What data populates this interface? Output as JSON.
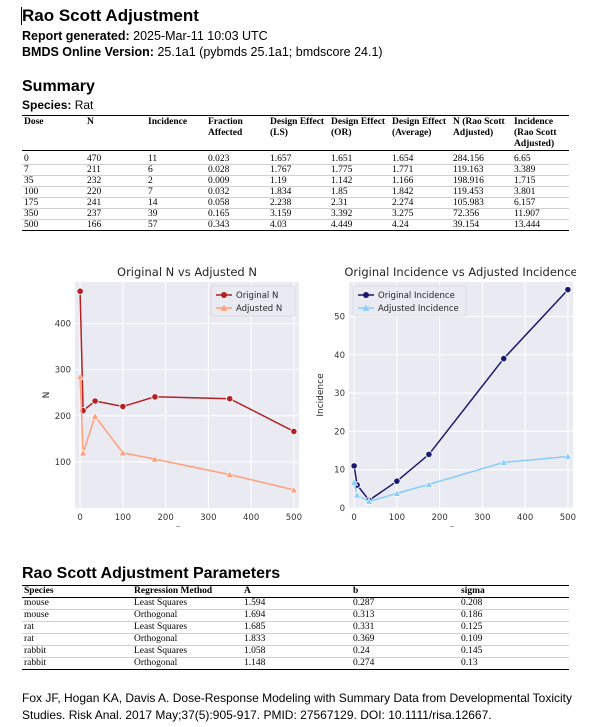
{
  "report": {
    "title": "Rao Scott Adjustment",
    "generated_label": "Report generated:",
    "generated_value": "2025-Mar-11 10:03 UTC",
    "version_label": "BMDS Online Version:",
    "version_value": "25.1a1 (pybmds 25.1a1; bmdscore 24.1)"
  },
  "summary": {
    "heading": "Summary",
    "species_label": "Species:",
    "species_value": "Rat",
    "headers": [
      "Dose",
      "N",
      "Incidence",
      "Fraction Affected",
      "Design Effect (LS)",
      "Design Effect (OR)",
      "Design Effect (Average)",
      "N (Rao Scott Adjusted)",
      "Incidence (Rao Scott Adjusted)"
    ],
    "rows": [
      [
        "0",
        "470",
        "11",
        "0.023",
        "1.657",
        "1.651",
        "1.654",
        "284.156",
        "6.65"
      ],
      [
        "7",
        "211",
        "6",
        "0.028",
        "1.767",
        "1.775",
        "1.771",
        "119.163",
        "3.389"
      ],
      [
        "35",
        "232",
        "2",
        "0.009",
        "1.19",
        "1.142",
        "1.166",
        "198.916",
        "1.715"
      ],
      [
        "100",
        "220",
        "7",
        "0.032",
        "1.834",
        "1.85",
        "1.842",
        "119.453",
        "3.801"
      ],
      [
        "175",
        "241",
        "14",
        "0.058",
        "2.238",
        "2.31",
        "2.274",
        "105.983",
        "6.157"
      ],
      [
        "350",
        "237",
        "39",
        "0.165",
        "3.159",
        "3.392",
        "3.275",
        "72.356",
        "11.907"
      ],
      [
        "500",
        "166",
        "57",
        "0.343",
        "4.03",
        "4.449",
        "4.24",
        "39.154",
        "13.444"
      ]
    ]
  },
  "chart_data": [
    {
      "type": "line",
      "title": "Original N vs Adjusted N",
      "xlabel": "Dose",
      "ylabel": "N",
      "x": [
        0,
        7,
        35,
        100,
        175,
        350,
        500
      ],
      "xlim": [
        -12,
        512
      ],
      "ylim": [
        0,
        490
      ],
      "xticks": [
        0,
        100,
        200,
        300,
        400,
        500
      ],
      "yticks": [
        100,
        200,
        300,
        400
      ],
      "legend": "top-right",
      "grid": true,
      "series": [
        {
          "name": "Original N",
          "values": [
            470,
            211,
            232,
            220,
            241,
            237,
            166
          ],
          "color": "#b22222",
          "marker": "circle"
        },
        {
          "name": "Adjusted N",
          "values": [
            284.156,
            119.163,
            198.916,
            119.453,
            105.983,
            72.356,
            39.154
          ],
          "color": "#ffa07a",
          "marker": "triangle"
        }
      ]
    },
    {
      "type": "line",
      "title": "Original Incidence vs Adjusted Incidence",
      "xlabel": "Dose",
      "ylabel": "Incidence",
      "x": [
        0,
        7,
        35,
        100,
        175,
        350,
        500
      ],
      "xlim": [
        -12,
        512
      ],
      "ylim": [
        0,
        59
      ],
      "xticks": [
        0,
        100,
        200,
        300,
        400,
        500
      ],
      "yticks": [
        0,
        10,
        20,
        30,
        40,
        50
      ],
      "legend": "top-left",
      "grid": true,
      "series": [
        {
          "name": "Original Incidence",
          "values": [
            11,
            6,
            2,
            7,
            14,
            39,
            57
          ],
          "color": "#191970",
          "marker": "circle"
        },
        {
          "name": "Adjusted Incidence",
          "values": [
            6.65,
            3.389,
            1.715,
            3.801,
            6.157,
            11.907,
            13.444
          ],
          "color": "#87cefa",
          "marker": "triangle"
        }
      ]
    }
  ],
  "params": {
    "heading": "Rao Scott Adjustment Parameters",
    "headers": [
      "Species",
      "Regression Method",
      "A",
      "b",
      "sigma"
    ],
    "rows": [
      [
        "mouse",
        "Least Squares",
        "1.594",
        "0.287",
        "0.208"
      ],
      [
        "mouse",
        "Orthogonal",
        "1.694",
        "0.313",
        "0.186"
      ],
      [
        "rat",
        "Least Squares",
        "1.685",
        "0.331",
        "0.125"
      ],
      [
        "rat",
        "Orthogonal",
        "1.833",
        "0.369",
        "0.109"
      ],
      [
        "rabbit",
        "Least Squares",
        "1.058",
        "0.24",
        "0.145"
      ],
      [
        "rabbit",
        "Orthogonal",
        "1.148",
        "0.274",
        "0.13"
      ]
    ]
  },
  "reference": "Fox JF, Hogan KA, Davis A. Dose-Response Modeling with Summary Data from Developmental Toxicity Studies. Risk Anal. 2017 May;37(5):905-917. PMID: 27567129. DOI: 10.1111/risa.12667."
}
